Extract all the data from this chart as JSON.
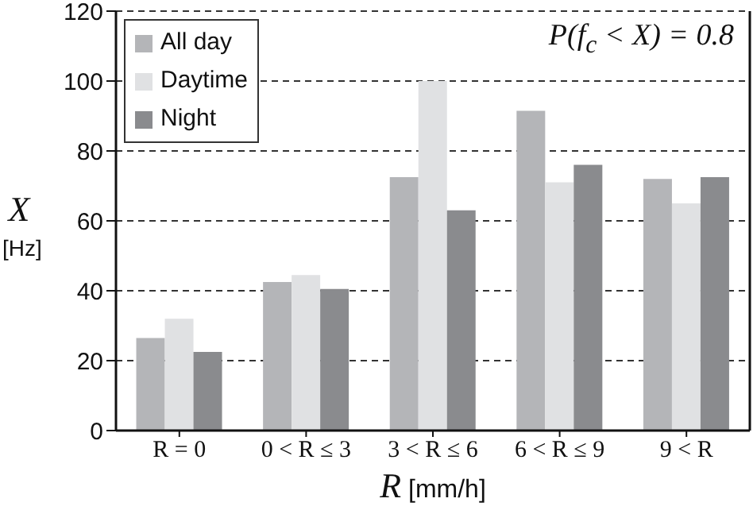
{
  "chart_data": {
    "type": "bar",
    "xlabel": "R [mm/h]",
    "ylabel": "X [Hz]",
    "annotations": [
      "P(f$_{c}$ < X) = 0.8"
    ],
    "categories": [
      "R = 0",
      "0 < R ≤ 3",
      "3 < R ≤ 6",
      "6 < R ≤ 9",
      "9 < R"
    ],
    "series": [
      {
        "name": "All day",
        "color": "#b4b5b8",
        "values": [
          26.5,
          42.5,
          72.5,
          91.5,
          72
        ]
      },
      {
        "name": "Daytime",
        "color": "#e0e1e3",
        "values": [
          32,
          44.5,
          100,
          71,
          65
        ]
      },
      {
        "name": "Night",
        "color": "#8a8b8e",
        "values": [
          22.5,
          40.5,
          63,
          76,
          72.5
        ]
      }
    ],
    "ylim": [
      0,
      120
    ],
    "yticks": [
      0,
      20,
      40,
      60,
      80,
      100,
      120
    ],
    "grid": "y",
    "legend": "top left"
  }
}
